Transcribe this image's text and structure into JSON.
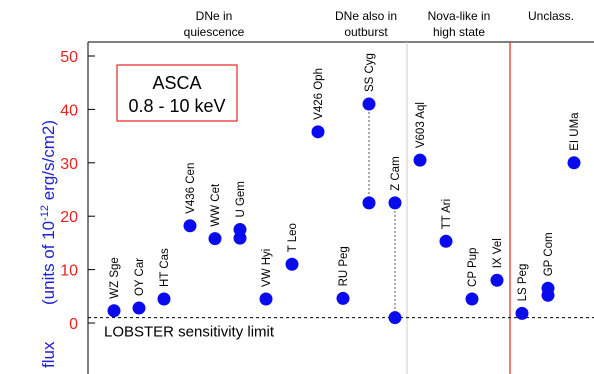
{
  "chart_data": {
    "type": "scatter",
    "ylim": [
      -7,
      53
    ],
    "yticks": [
      0,
      10,
      20,
      30,
      40,
      50
    ],
    "ylabel_prefix": "flux",
    "ylabel_units": "(units of 10",
    "ylabel_exp": "-12",
    "ylabel_tail": " erg/s/cm2)",
    "annotation_box": [
      "ASCA",
      "0.8 - 10 keV"
    ],
    "threshold": {
      "value": 1,
      "label": "LOBSTER sensitivity limit"
    },
    "groups": [
      {
        "lines": [
          "DNe in",
          "quiescence"
        ]
      },
      {
        "lines": [
          "DNe also in",
          "outburst"
        ]
      },
      {
        "lines": [
          "Nova-like in",
          "high state"
        ]
      },
      {
        "lines": [
          "Unclass."
        ]
      }
    ],
    "stars": [
      {
        "name": "WZ Sge",
        "values": [
          2.3
        ]
      },
      {
        "name": "OY Car",
        "values": [
          2.8
        ]
      },
      {
        "name": "HT Cas",
        "values": [
          4.5
        ]
      },
      {
        "name": "V436 Cen",
        "values": [
          18.2
        ]
      },
      {
        "name": "WW Cet",
        "values": [
          15.8
        ]
      },
      {
        "name": "U Gem",
        "values": [
          17.5,
          15.9
        ]
      },
      {
        "name": "VW Hyi",
        "values": [
          4.5
        ]
      },
      {
        "name": "T Leo",
        "values": [
          11.0
        ]
      },
      {
        "name": "V426 Oph",
        "values": [
          35.8
        ]
      },
      {
        "name": "RU Peg",
        "values": [
          4.6
        ]
      },
      {
        "name": "SS Cyg",
        "values": [
          41.0,
          22.5
        ]
      },
      {
        "name": "Z Cam",
        "values": [
          22.5,
          1.0
        ]
      },
      {
        "name": "V603 Aql",
        "values": [
          30.5
        ]
      },
      {
        "name": "TT Ari",
        "values": [
          15.3
        ]
      },
      {
        "name": "CP Pup",
        "values": [
          4.5
        ]
      },
      {
        "name": "IX Vel",
        "values": [
          8.0
        ]
      },
      {
        "name": "LS Peg",
        "values": [
          1.8
        ]
      },
      {
        "name": "GP Com",
        "values": [
          6.5,
          5.2
        ]
      },
      {
        "name": "EI UMa",
        "values": [
          30.0
        ]
      }
    ],
    "colors": {
      "points": "#0a0aee",
      "ticks": "#e8231f",
      "ylabel": "#1f1fd6",
      "box": "#e8231f",
      "divider": "#e8231f",
      "divider_light": "#cccccc"
    }
  }
}
